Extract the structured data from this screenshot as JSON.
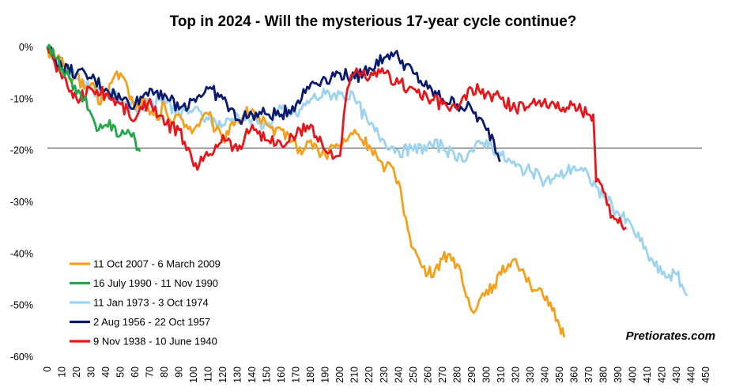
{
  "chart_data": {
    "type": "line",
    "title": "Top in 2024 - Will the mysterious 17-year cycle continue?",
    "xlabel": "",
    "ylabel": "",
    "xlim": [
      0,
      450
    ],
    "ylim": [
      -60,
      0
    ],
    "xticks": [
      0,
      10,
      20,
      30,
      40,
      50,
      60,
      70,
      80,
      90,
      100,
      110,
      120,
      130,
      140,
      150,
      160,
      170,
      180,
      190,
      200,
      210,
      220,
      230,
      240,
      250,
      260,
      270,
      280,
      290,
      300,
      310,
      320,
      330,
      340,
      350,
      360,
      370,
      380,
      390,
      400,
      410,
      420,
      430,
      440,
      450
    ],
    "x_tick_labels": [
      "0",
      "10",
      "20",
      "30",
      "40",
      "50",
      "60",
      "70",
      "80",
      "90",
      "100",
      "110",
      "120",
      "130",
      "140",
      "150",
      "160",
      "170",
      "180",
      "190",
      "200",
      "210",
      "220",
      "230",
      "240",
      "250",
      "260",
      "270",
      "280",
      "290",
      "300",
      "310",
      "320",
      "330",
      "340",
      "350",
      "360",
      "370",
      "380",
      "390",
      "400",
      "410",
      "420",
      "430",
      "440",
      "450"
    ],
    "yticks": [
      0,
      -10,
      -20,
      -30,
      -40,
      -50,
      -60
    ],
    "y_tick_labels": [
      "0%",
      "-10%",
      "-20%",
      "-30%",
      "-40%",
      "-50%",
      "-60%"
    ],
    "reference_line": {
      "y": -19.5,
      "color": "#404040"
    },
    "grid": false,
    "legend_position": "bottom-left",
    "watermark": "Pretiorates.com",
    "series": [
      {
        "name": "11 Oct 2007 - 6 March 2009",
        "color": "#F5A01A",
        "x": [
          0,
          5,
          10,
          15,
          20,
          25,
          30,
          35,
          40,
          45,
          50,
          55,
          60,
          65,
          70,
          75,
          80,
          85,
          90,
          95,
          100,
          105,
          110,
          115,
          120,
          125,
          130,
          135,
          140,
          145,
          150,
          155,
          160,
          165,
          170,
          175,
          180,
          185,
          190,
          195,
          200,
          205,
          210,
          215,
          220,
          225,
          230,
          235,
          240,
          245,
          250,
          255,
          260,
          265,
          270,
          275,
          280,
          285,
          290,
          295,
          300,
          305,
          310,
          315,
          320,
          325,
          330,
          335,
          340,
          345,
          350,
          353
        ],
        "y": [
          0,
          -3,
          -2,
          -6,
          -5,
          -8,
          -7,
          -11,
          -9,
          -6,
          -5,
          -8,
          -12,
          -10,
          -13,
          -14,
          -11,
          -15,
          -13,
          -15,
          -16,
          -14,
          -13,
          -16,
          -18,
          -15,
          -14,
          -13,
          -12,
          -14,
          -15,
          -17,
          -16,
          -17,
          -19,
          -20,
          -18,
          -20,
          -21,
          -19,
          -19,
          -18,
          -16,
          -18,
          -19,
          -21,
          -24,
          -23,
          -26,
          -33,
          -39,
          -42,
          -44,
          -43,
          -41,
          -40,
          -42,
          -47,
          -51,
          -49,
          -47,
          -46,
          -44,
          -42,
          -41,
          -43,
          -46,
          -47,
          -49,
          -51,
          -54,
          -56
        ]
      },
      {
        "name": "16 July 1990 - 11 Nov 1990",
        "color": "#22A84A",
        "x": [
          0,
          5,
          10,
          15,
          20,
          25,
          30,
          35,
          40,
          45,
          50,
          55,
          60,
          63
        ],
        "y": [
          0,
          -2,
          -4,
          -6,
          -9,
          -10,
          -13,
          -16,
          -15,
          -15,
          -17,
          -16,
          -18,
          -20
        ]
      },
      {
        "name": "11 Jan 1973 - 3 Oct 1974",
        "color": "#9DD3EF",
        "x": [
          0,
          10,
          20,
          30,
          40,
          50,
          60,
          70,
          80,
          90,
          100,
          110,
          120,
          130,
          140,
          150,
          160,
          170,
          180,
          190,
          200,
          210,
          220,
          230,
          240,
          250,
          260,
          270,
          280,
          290,
          300,
          310,
          320,
          330,
          340,
          350,
          360,
          370,
          380,
          390,
          400,
          410,
          420,
          430,
          437
        ],
        "y": [
          0,
          -4,
          -6,
          -8,
          -9,
          -10,
          -12,
          -11,
          -10,
          -13,
          -12,
          -14,
          -15,
          -13,
          -14,
          -15,
          -12,
          -13,
          -10,
          -9,
          -9,
          -10,
          -15,
          -18,
          -20,
          -20,
          -19,
          -19,
          -22,
          -20,
          -18,
          -21,
          -23,
          -24,
          -26,
          -25,
          -23,
          -25,
          -29,
          -32,
          -35,
          -40,
          -44,
          -44,
          -48
        ]
      },
      {
        "name": "2 Aug 1956 - 22 Oct 1957",
        "color": "#0A1A6E",
        "x": [
          0,
          10,
          20,
          30,
          40,
          50,
          60,
          70,
          80,
          90,
          100,
          110,
          120,
          130,
          140,
          150,
          160,
          170,
          180,
          190,
          200,
          210,
          220,
          230,
          235,
          240,
          250,
          260,
          270,
          280,
          290,
          300,
          305,
          309
        ],
        "y": [
          0,
          -4,
          -5,
          -6,
          -8,
          -10,
          -11,
          -8,
          -9,
          -12,
          -10,
          -8,
          -10,
          -14,
          -13,
          -13,
          -13,
          -11,
          -7,
          -6,
          -5,
          -6,
          -4,
          -2,
          -1,
          -2,
          -5,
          -8,
          -10,
          -11,
          -12,
          -16,
          -18,
          -22
        ]
      },
      {
        "name": "9 Nov 1938 - 10 June 1940",
        "color": "#E8161B",
        "x": [
          0,
          10,
          20,
          30,
          40,
          50,
          60,
          70,
          80,
          90,
          100,
          110,
          120,
          130,
          140,
          150,
          160,
          170,
          180,
          190,
          200,
          205,
          210,
          215,
          220,
          230,
          240,
          250,
          260,
          270,
          280,
          290,
          300,
          310,
          320,
          330,
          340,
          350,
          360,
          370,
          373,
          375,
          380,
          385,
          390,
          395
        ],
        "y": [
          0,
          -6,
          -10,
          -8,
          -9,
          -11,
          -14,
          -10,
          -15,
          -16,
          -23,
          -21,
          -17,
          -20,
          -15,
          -18,
          -19,
          -17,
          -15,
          -20,
          -21,
          -8,
          -5,
          -5,
          -6,
          -5,
          -7,
          -8,
          -10,
          -11,
          -12,
          -8,
          -9,
          -10,
          -12,
          -11,
          -10,
          -12,
          -11,
          -13,
          -13,
          -26,
          -28,
          -33,
          -34,
          -35
        ]
      }
    ]
  }
}
